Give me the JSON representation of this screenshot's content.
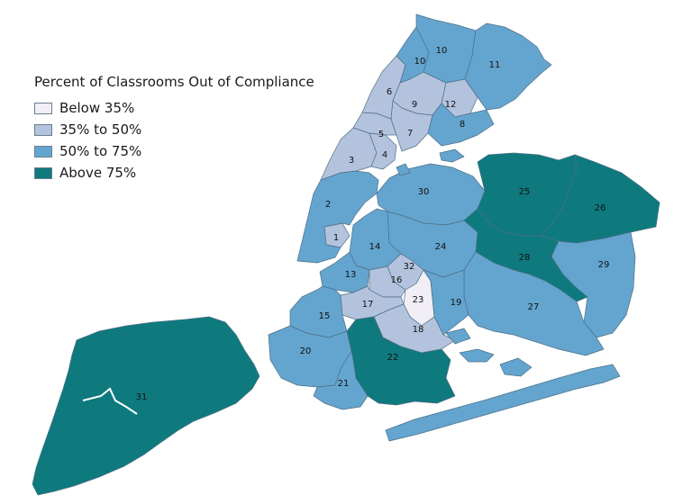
{
  "legend": {
    "title": "Percent of Classrooms Out of Compliance",
    "items": [
      {
        "key": "below35",
        "label": "Below 35%",
        "color": "#f1eef6"
      },
      {
        "key": "35to50",
        "label": "35% to 50%",
        "color": "#b4c3dd"
      },
      {
        "key": "50to75",
        "label": "50% to 75%",
        "color": "#64a5cf"
      },
      {
        "key": "above75",
        "label": "Above 75%",
        "color": "#0e7a7e"
      }
    ]
  },
  "districts": [
    {
      "id": "1",
      "category": "35to50"
    },
    {
      "id": "2",
      "category": "50to75"
    },
    {
      "id": "3",
      "category": "35to50"
    },
    {
      "id": "4",
      "category": "35to50"
    },
    {
      "id": "5",
      "category": "35to50"
    },
    {
      "id": "6",
      "category": "35to50"
    },
    {
      "id": "7",
      "category": "35to50"
    },
    {
      "id": "8",
      "category": "50to75"
    },
    {
      "id": "9",
      "category": "35to50"
    },
    {
      "id": "10",
      "category": "50to75"
    },
    {
      "id": "10b",
      "label": "10",
      "category": "50to75"
    },
    {
      "id": "11",
      "category": "50to75"
    },
    {
      "id": "12",
      "category": "35to50"
    },
    {
      "id": "13",
      "category": "50to75"
    },
    {
      "id": "14",
      "category": "50to75"
    },
    {
      "id": "15",
      "category": "50to75"
    },
    {
      "id": "16",
      "category": "35to50"
    },
    {
      "id": "17",
      "category": "35to50"
    },
    {
      "id": "18",
      "category": "35to50"
    },
    {
      "id": "19",
      "category": "50to75"
    },
    {
      "id": "20",
      "category": "50to75"
    },
    {
      "id": "21",
      "category": "50to75"
    },
    {
      "id": "22",
      "category": "above75"
    },
    {
      "id": "23",
      "category": "below35"
    },
    {
      "id": "24",
      "category": "50to75"
    },
    {
      "id": "25",
      "category": "above75"
    },
    {
      "id": "26",
      "category": "above75"
    },
    {
      "id": "27",
      "category": "50to75"
    },
    {
      "id": "28",
      "category": "above75"
    },
    {
      "id": "29",
      "category": "50to75"
    },
    {
      "id": "30",
      "category": "50to75"
    },
    {
      "id": "31",
      "category": "above75"
    },
    {
      "id": "32",
      "category": "35to50"
    }
  ]
}
